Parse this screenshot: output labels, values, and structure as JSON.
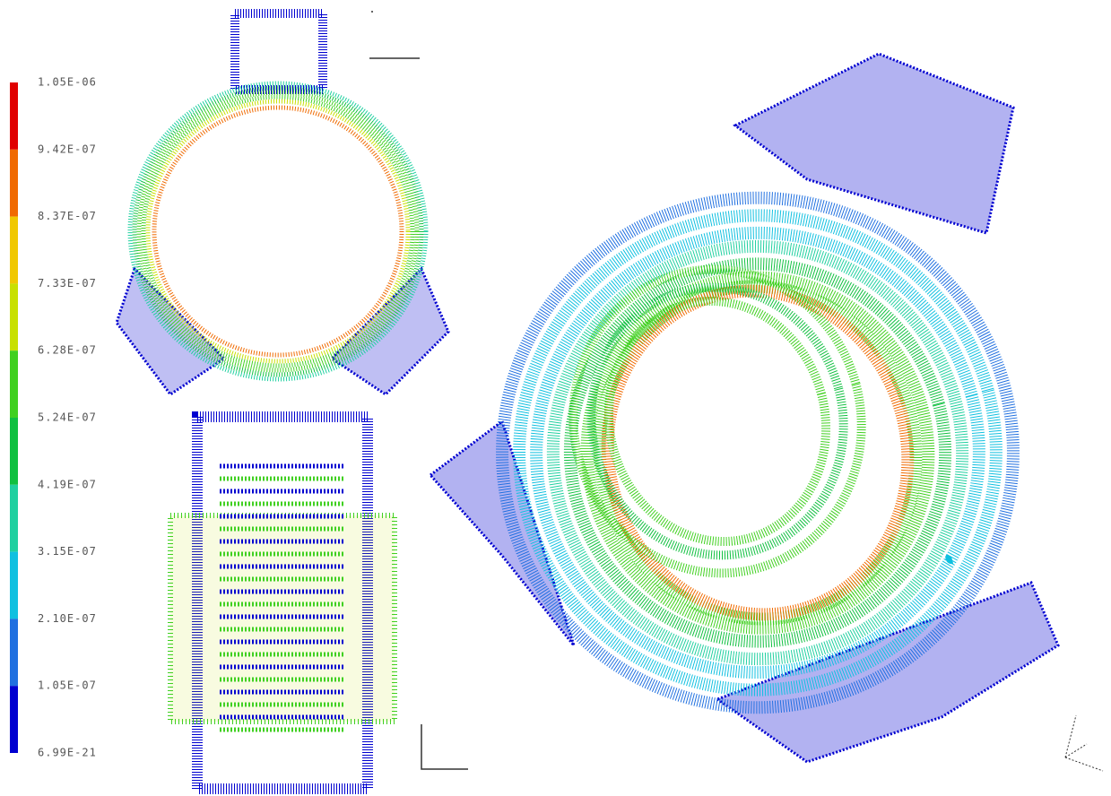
{
  "legend": {
    "labels": [
      "1.05E-06",
      "9.42E-07",
      "8.37E-07",
      "7.33E-07",
      "6.28E-07",
      "5.24E-07",
      "4.19E-07",
      "3.15E-07",
      "2.10E-07",
      "1.05E-07",
      "6.99E-21"
    ],
    "colors": [
      "#e00000",
      "#f06a00",
      "#f0c800",
      "#c8e000",
      "#40d020",
      "#10c040",
      "#20d0a0",
      "#10c0e0",
      "#2070e0",
      "#0000d0"
    ]
  }
}
